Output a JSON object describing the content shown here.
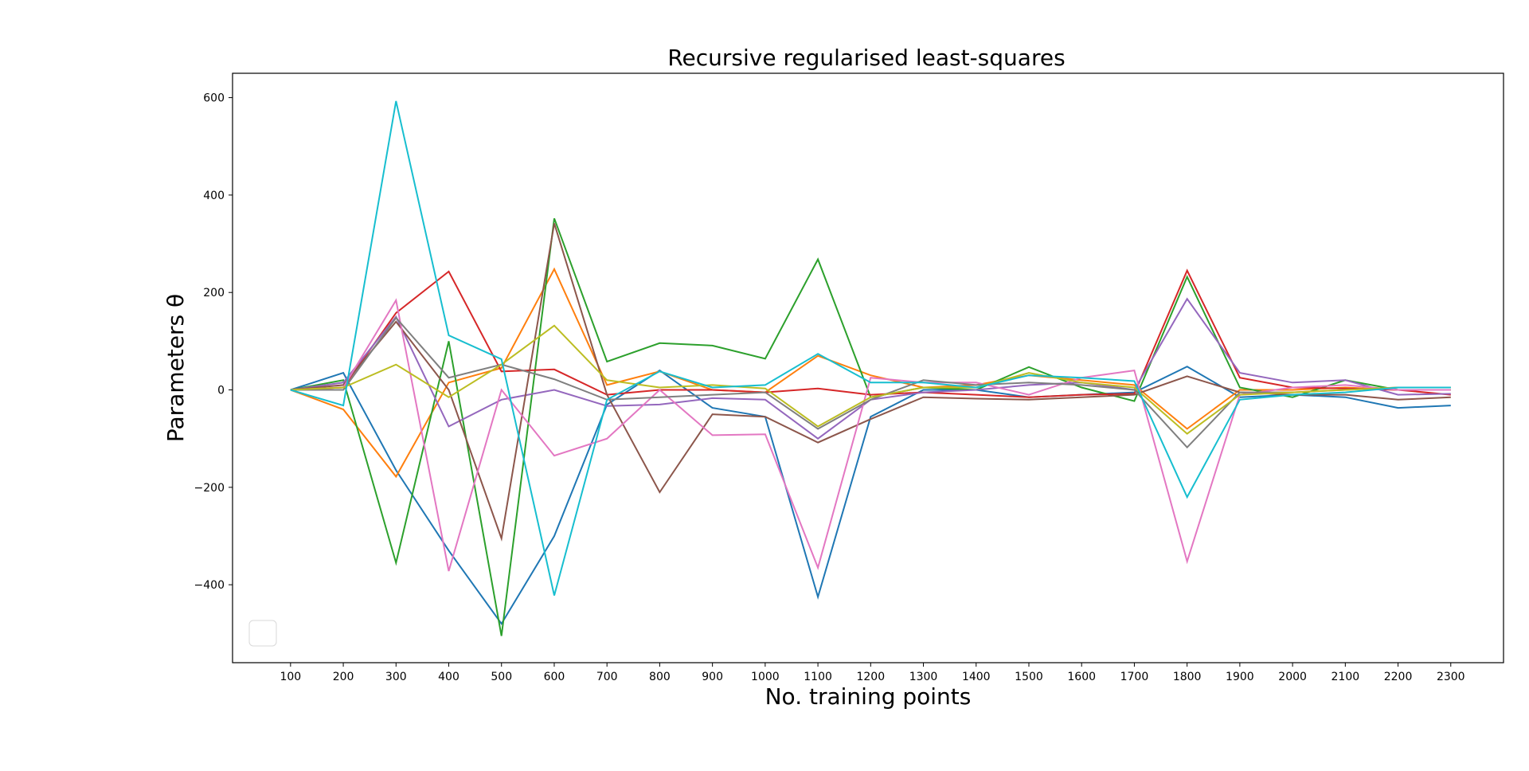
{
  "chart_data": {
    "type": "line",
    "title": "Recursive regularised least-squares",
    "xlabel": "No. training points",
    "ylabel": "Parameters θ",
    "x": [
      100,
      200,
      300,
      400,
      500,
      600,
      700,
      800,
      900,
      1000,
      1100,
      1200,
      1300,
      1400,
      1500,
      1600,
      1700,
      1800,
      1900,
      2000,
      2100,
      2200,
      2300
    ],
    "x_ticks": [
      "100",
      "200",
      "300",
      "400",
      "500",
      "600",
      "700",
      "800",
      "900",
      "1000",
      "1100",
      "1200",
      "1300",
      "1400",
      "1500",
      "1600",
      "1700",
      "1800",
      "1900",
      "2000",
      "2100",
      "2200",
      "2300"
    ],
    "y_ticks": [
      {
        "value": 600,
        "label": "600"
      },
      {
        "value": 400,
        "label": "400"
      },
      {
        "value": 200,
        "label": "200"
      },
      {
        "value": 0,
        "label": "0"
      },
      {
        "value": -200,
        "label": "−200"
      },
      {
        "value": -400,
        "label": "−400"
      }
    ],
    "xlim": [
      -10,
      2400
    ],
    "ylim": [
      -560,
      650
    ],
    "grid": false,
    "legend": {
      "placement": "lower-left",
      "entries": []
    },
    "series": [
      {
        "color": "#1f77b4",
        "values": [
          0,
          35,
          -165,
          -330,
          -480,
          -300,
          -30,
          40,
          -37,
          -55,
          -425,
          -55,
          0,
          0,
          -15,
          -10,
          -5,
          48,
          -15,
          -10,
          -15,
          -37,
          -32
        ]
      },
      {
        "color": "#ff7f0e",
        "values": [
          0,
          -40,
          -178,
          15,
          45,
          248,
          10,
          38,
          0,
          -5,
          70,
          30,
          5,
          10,
          30,
          20,
          10,
          -80,
          0,
          0,
          5,
          0,
          0
        ]
      },
      {
        "color": "#2ca02c",
        "values": [
          0,
          20,
          -355,
          100,
          -505,
          352,
          58,
          96,
          91,
          64,
          268,
          -15,
          5,
          0,
          47,
          5,
          -23,
          232,
          5,
          -15,
          20,
          0,
          0
        ]
      },
      {
        "color": "#d62728",
        "values": [
          0,
          5,
          158,
          243,
          38,
          42,
          -10,
          0,
          0,
          -5,
          3,
          -10,
          -5,
          -10,
          -15,
          -10,
          -8,
          245,
          25,
          5,
          3,
          0,
          -10
        ]
      },
      {
        "color": "#9467bd",
        "values": [
          0,
          15,
          150,
          -75,
          -20,
          0,
          -33,
          -30,
          -17,
          -20,
          -100,
          -20,
          -5,
          0,
          10,
          15,
          0,
          187,
          35,
          15,
          20,
          -10,
          -8
        ]
      },
      {
        "color": "#8c564b",
        "values": [
          0,
          10,
          140,
          0,
          -305,
          342,
          -10,
          -210,
          -50,
          -55,
          -108,
          -60,
          -15,
          -18,
          -20,
          -15,
          -10,
          28,
          -5,
          -10,
          -10,
          -20,
          -15
        ]
      },
      {
        "color": "#e377c2",
        "values": [
          0,
          5,
          184,
          -372,
          0,
          -135,
          -100,
          0,
          -93,
          -91,
          -365,
          25,
          15,
          15,
          -10,
          25,
          40,
          -352,
          -10,
          5,
          10,
          0,
          0
        ]
      },
      {
        "color": "#7f7f7f",
        "values": [
          0,
          0,
          148,
          25,
          52,
          22,
          -20,
          -15,
          -10,
          -5,
          -80,
          -20,
          20,
          10,
          15,
          10,
          0,
          -118,
          -5,
          -5,
          0,
          5,
          5
        ]
      },
      {
        "color": "#bcbd22",
        "values": [
          0,
          5,
          52,
          -15,
          52,
          132,
          20,
          5,
          10,
          3,
          -75,
          -15,
          5,
          5,
          35,
          15,
          5,
          -90,
          -10,
          -5,
          0,
          5,
          5
        ]
      },
      {
        "color": "#17becf",
        "values": [
          0,
          -32,
          593,
          112,
          63,
          -422,
          -20,
          38,
          5,
          10,
          74,
          15,
          15,
          5,
          30,
          25,
          18,
          -220,
          -20,
          -10,
          -5,
          5,
          5
        ]
      }
    ]
  }
}
